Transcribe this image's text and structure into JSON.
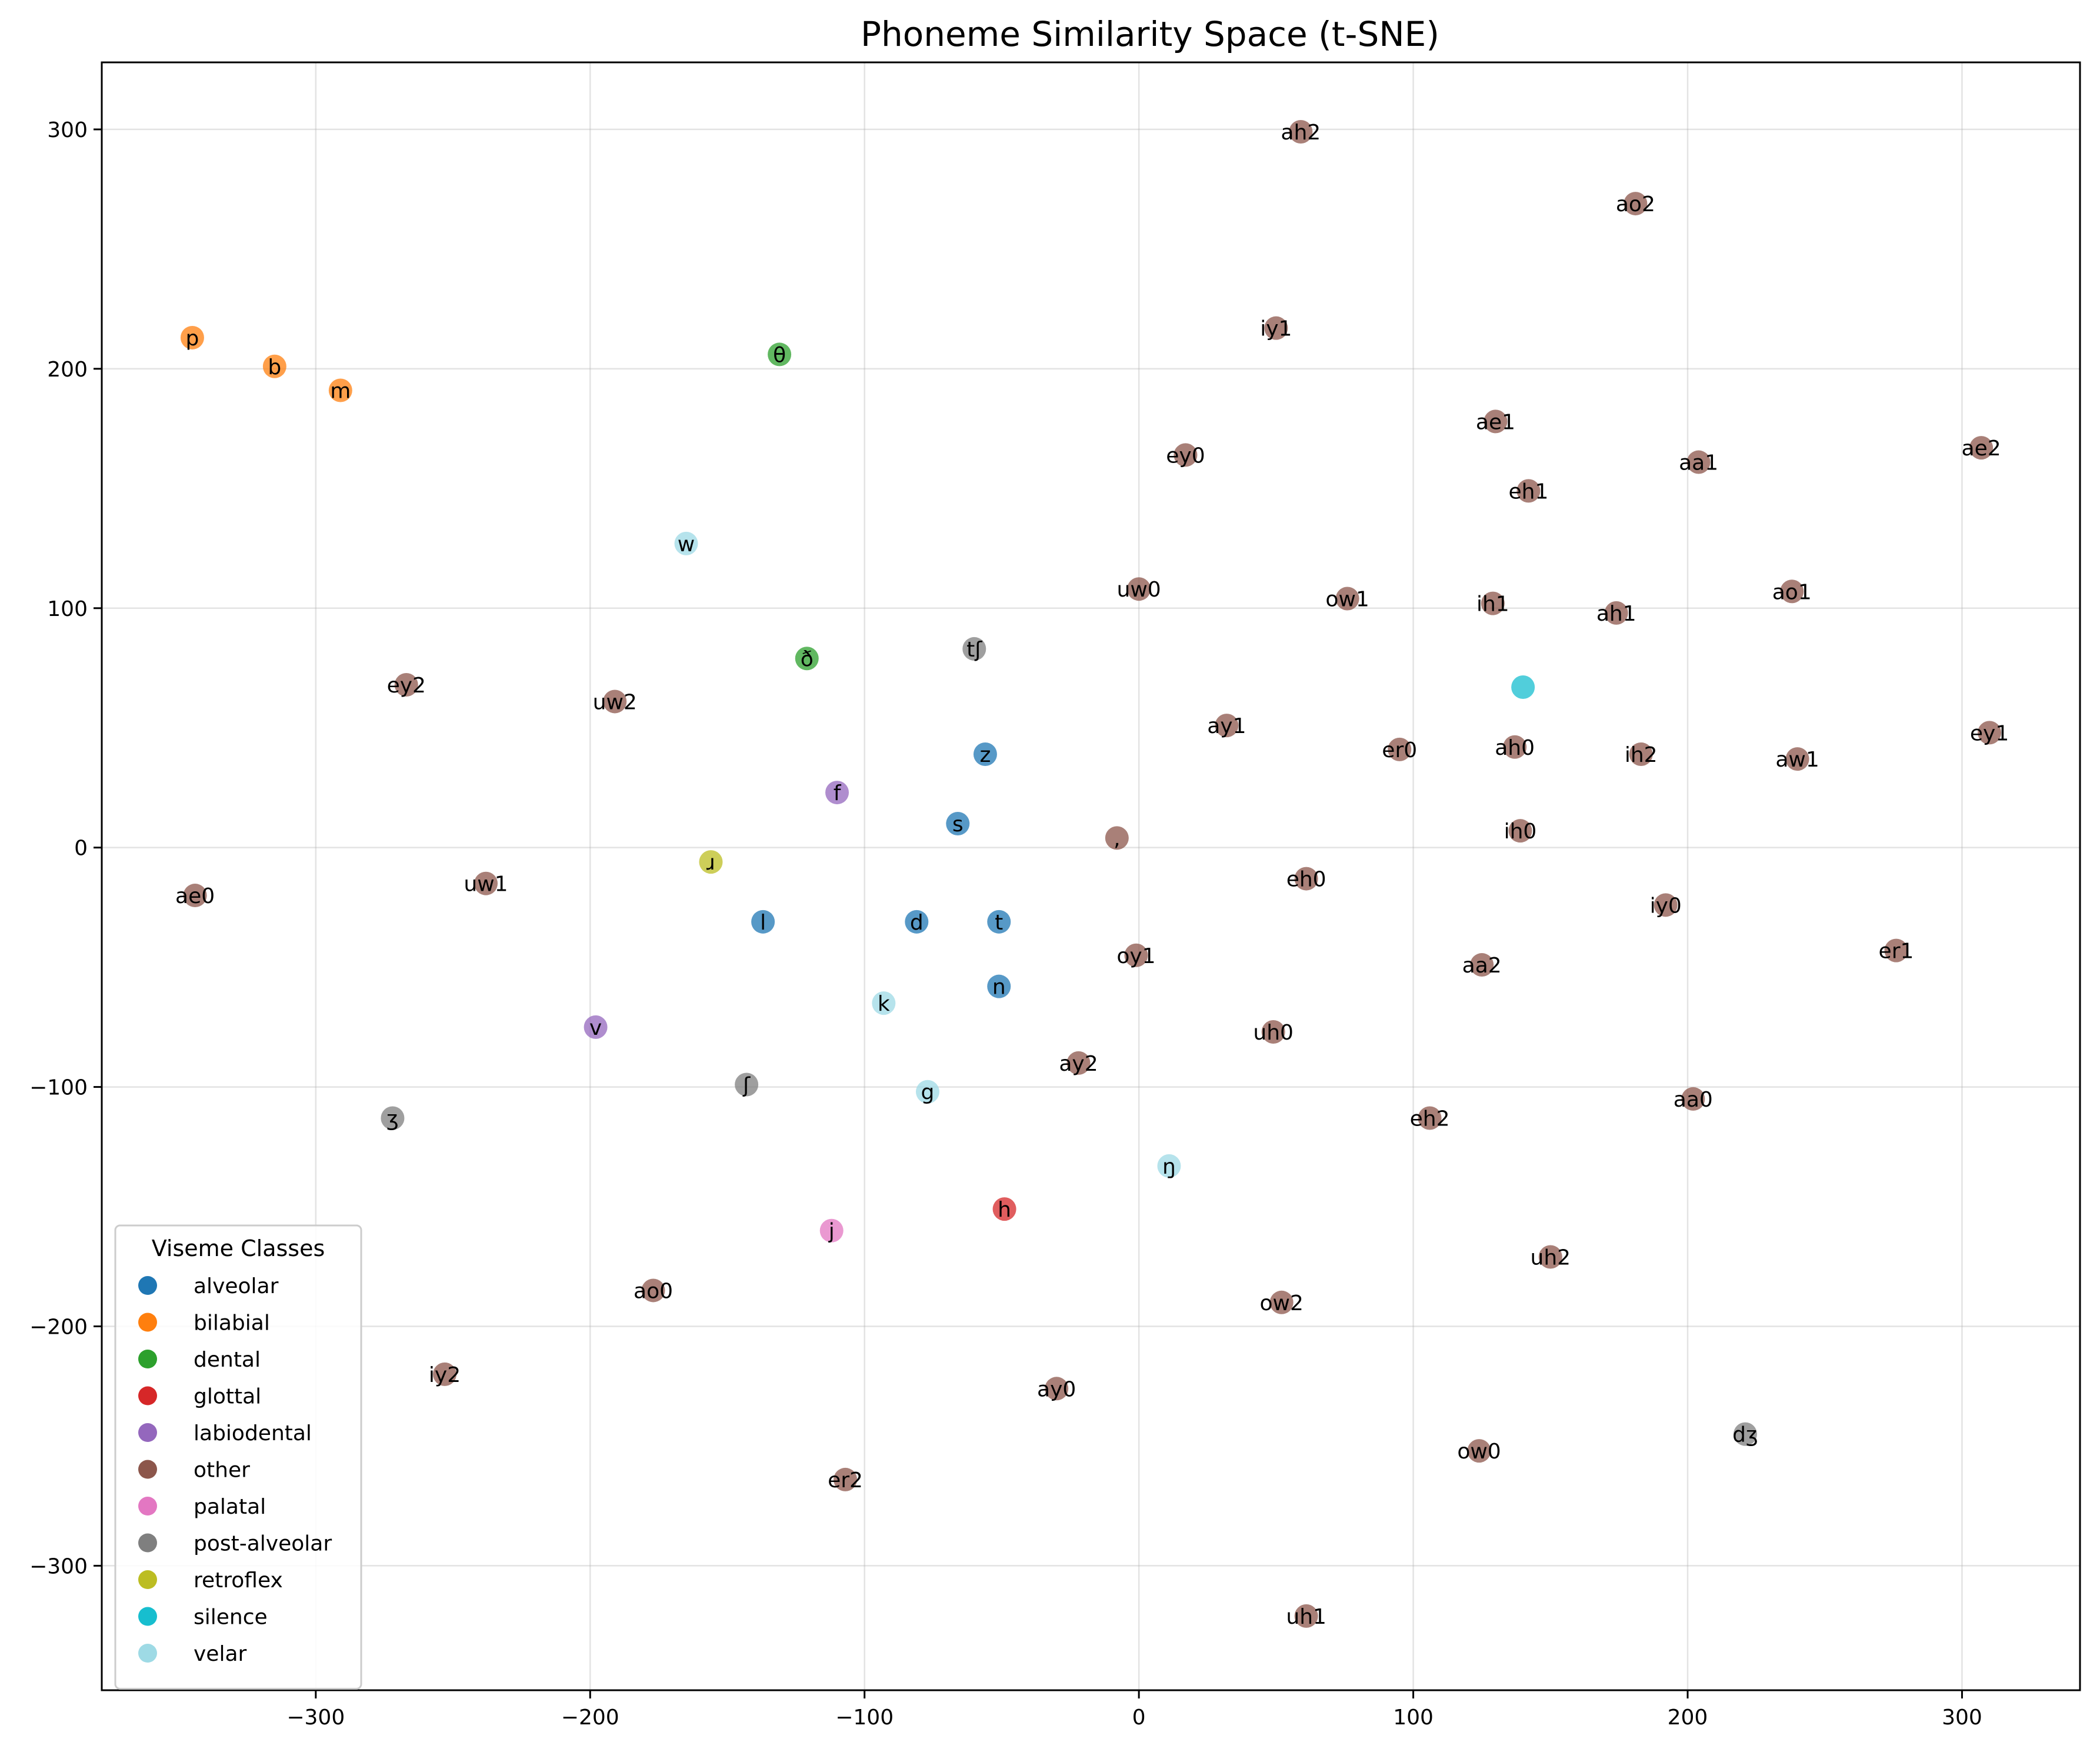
{
  "chart_data": {
    "type": "scatter",
    "title": "Phoneme Similarity Space (t-SNE)",
    "xlabel": "",
    "ylabel": "",
    "xlim": [
      -378,
      343
    ],
    "ylim": [
      -352,
      328
    ],
    "xticks": [
      -300,
      -200,
      -100,
      0,
      100,
      200,
      300
    ],
    "yticks": [
      -300,
      -200,
      -100,
      0,
      100,
      200,
      300
    ],
    "grid": true,
    "legend": {
      "title": "Viseme Classes",
      "placement": "lower-left",
      "entries": [
        "alveolar",
        "bilabial",
        "dental",
        "glottal",
        "labiodental",
        "other",
        "palatal",
        "post-alveolar",
        "retroflex",
        "silence",
        "velar"
      ]
    },
    "class_colors": {
      "alveolar": "#1f77b4",
      "bilabial": "#ff7f0e",
      "dental": "#2ca02c",
      "glottal": "#d62728",
      "labiodental": "#9467bd",
      "other": "#8c564b",
      "palatal": "#e377c2",
      "post-alveolar": "#7f7f7f",
      "retroflex": "#bcbd22",
      "silence": "#17becf",
      "velar": "#9edae5"
    },
    "points": [
      {
        "label": "p",
        "class": "bilabial",
        "x": -345,
        "y": 213
      },
      {
        "label": "b",
        "class": "bilabial",
        "x": -315,
        "y": 201
      },
      {
        "label": "m",
        "class": "bilabial",
        "x": -291,
        "y": 191
      },
      {
        "label": "θ",
        "class": "dental",
        "x": -131,
        "y": 206
      },
      {
        "label": "ð",
        "class": "dental",
        "x": -121,
        "y": 79
      },
      {
        "label": "w",
        "class": "velar",
        "x": -165,
        "y": 127
      },
      {
        "label": "k",
        "class": "velar",
        "x": -93,
        "y": -65
      },
      {
        "label": "g",
        "class": "velar",
        "x": -77,
        "y": -102
      },
      {
        "label": "ŋ",
        "class": "velar",
        "x": 11,
        "y": -133
      },
      {
        "label": "tʃ",
        "class": "post-alveolar",
        "x": -60,
        "y": 83
      },
      {
        "label": "ʃ",
        "class": "post-alveolar",
        "x": -143,
        "y": -99
      },
      {
        "label": "ʒ",
        "class": "post-alveolar",
        "x": -272,
        "y": -113
      },
      {
        "label": "dʒ",
        "class": "post-alveolar",
        "x": 221,
        "y": -245
      },
      {
        "label": "z",
        "class": "alveolar",
        "x": -56,
        "y": 39
      },
      {
        "label": "s",
        "class": "alveolar",
        "x": -66,
        "y": 10
      },
      {
        "label": "l",
        "class": "alveolar",
        "x": -137,
        "y": -31
      },
      {
        "label": "d",
        "class": "alveolar",
        "x": -81,
        "y": -31
      },
      {
        "label": "t",
        "class": "alveolar",
        "x": -51,
        "y": -31
      },
      {
        "label": "n",
        "class": "alveolar",
        "x": -51,
        "y": -58
      },
      {
        "label": "f",
        "class": "labiodental",
        "x": -110,
        "y": 23
      },
      {
        "label": "v",
        "class": "labiodental",
        "x": -198,
        "y": -75
      },
      {
        "label": "ɹ",
        "class": "retroflex",
        "x": -156,
        "y": -6
      },
      {
        "label": "h",
        "class": "glottal",
        "x": -49,
        "y": -151
      },
      {
        "label": "j",
        "class": "palatal",
        "x": -112,
        "y": -160
      },
      {
        "label": "",
        "class": "silence",
        "x": 140,
        "y": 67
      },
      {
        "label": ",",
        "class": "other",
        "x": -8,
        "y": 4
      },
      {
        "label": "ah2",
        "class": "other",
        "x": 59,
        "y": 299
      },
      {
        "label": "ao2",
        "class": "other",
        "x": 181,
        "y": 269
      },
      {
        "label": "iy1",
        "class": "other",
        "x": 50,
        "y": 217
      },
      {
        "label": "ae1",
        "class": "other",
        "x": 130,
        "y": 178
      },
      {
        "label": "aa1",
        "class": "other",
        "x": 204,
        "y": 161
      },
      {
        "label": "ae2",
        "class": "other",
        "x": 307,
        "y": 167
      },
      {
        "label": "ey0",
        "class": "other",
        "x": 17,
        "y": 164
      },
      {
        "label": "eh1",
        "class": "other",
        "x": 142,
        "y": 149
      },
      {
        "label": "uw0",
        "class": "other",
        "x": 0,
        "y": 108
      },
      {
        "label": "ow1",
        "class": "other",
        "x": 76,
        "y": 104
      },
      {
        "label": "ih1",
        "class": "other",
        "x": 129,
        "y": 102
      },
      {
        "label": "ah1",
        "class": "other",
        "x": 174,
        "y": 98
      },
      {
        "label": "ao1",
        "class": "other",
        "x": 238,
        "y": 107
      },
      {
        "label": "ey2",
        "class": "other",
        "x": -267,
        "y": 68
      },
      {
        "label": "uw2",
        "class": "other",
        "x": -191,
        "y": 61
      },
      {
        "label": "ay1",
        "class": "other",
        "x": 32,
        "y": 51
      },
      {
        "label": "er0",
        "class": "other",
        "x": 95,
        "y": 41
      },
      {
        "label": "ah0",
        "class": "other",
        "x": 137,
        "y": 42
      },
      {
        "label": "ih2",
        "class": "other",
        "x": 183,
        "y": 39
      },
      {
        "label": "aw1",
        "class": "other",
        "x": 240,
        "y": 37
      },
      {
        "label": "ey1",
        "class": "other",
        "x": 310,
        "y": 48
      },
      {
        "label": "ih0",
        "class": "other",
        "x": 139,
        "y": 7
      },
      {
        "label": "ae0",
        "class": "other",
        "x": -344,
        "y": -20
      },
      {
        "label": "uw1",
        "class": "other",
        "x": -238,
        "y": -15
      },
      {
        "label": "eh0",
        "class": "other",
        "x": 61,
        "y": -13
      },
      {
        "label": "iy0",
        "class": "other",
        "x": 192,
        "y": -24
      },
      {
        "label": "er1",
        "class": "other",
        "x": 276,
        "y": -43
      },
      {
        "label": "oy1",
        "class": "other",
        "x": -1,
        "y": -45
      },
      {
        "label": "aa2",
        "class": "other",
        "x": 125,
        "y": -49
      },
      {
        "label": "uh0",
        "class": "other",
        "x": 49,
        "y": -77
      },
      {
        "label": "ay2",
        "class": "other",
        "x": -22,
        "y": -90
      },
      {
        "label": "eh2",
        "class": "other",
        "x": 106,
        "y": -113
      },
      {
        "label": "aa0",
        "class": "other",
        "x": 202,
        "y": -105
      },
      {
        "label": "uh2",
        "class": "other",
        "x": 150,
        "y": -171
      },
      {
        "label": "ao0",
        "class": "other",
        "x": -177,
        "y": -185
      },
      {
        "label": "ow2",
        "class": "other",
        "x": 52,
        "y": -190
      },
      {
        "label": "iy2",
        "class": "other",
        "x": -253,
        "y": -220
      },
      {
        "label": "ay0",
        "class": "other",
        "x": -30,
        "y": -226
      },
      {
        "label": "ow0",
        "class": "other",
        "x": 124,
        "y": -252
      },
      {
        "label": "er2",
        "class": "other",
        "x": -107,
        "y": -264
      },
      {
        "label": "uh1",
        "class": "other",
        "x": 61,
        "y": -321
      }
    ]
  }
}
